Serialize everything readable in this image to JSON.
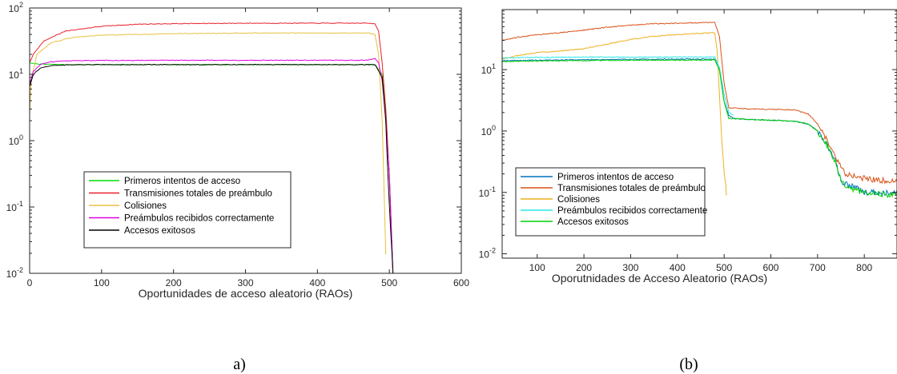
{
  "chart_data": [
    {
      "id": "a",
      "type": "line",
      "caption": "a)",
      "xlabel": "Oportunidades de acceso aleatorio (RAOs)",
      "ylabel": "",
      "xlim": [
        0,
        600
      ],
      "ylim": [
        0.01,
        100
      ],
      "yscale": "log",
      "xticks": [
        0,
        100,
        200,
        300,
        400,
        500,
        600
      ],
      "yticks": [
        {
          "value": 0.01,
          "base": "10",
          "exp": "-2"
        },
        {
          "value": 0.1,
          "base": "10",
          "exp": "-1"
        },
        {
          "value": 1,
          "base": "10",
          "exp": "0"
        },
        {
          "value": 10,
          "base": "10",
          "exp": "1"
        },
        {
          "value": 100,
          "base": "10",
          "exp": "2"
        }
      ],
      "grid": false,
      "legend_position": "bottom-left",
      "series": [
        {
          "name": "Primeros intentos de acceso",
          "color": "#00dd00",
          "x": [
            0,
            5,
            20,
            50,
            100,
            200,
            300,
            400,
            480,
            490,
            495,
            500,
            505
          ],
          "y": [
            14.8,
            14.5,
            14.2,
            14.0,
            14.0,
            14.0,
            14.0,
            14.0,
            14.0,
            10,
            3,
            0.3,
            0.01
          ]
        },
        {
          "name": "Transmisiones totales de preámbulo",
          "color": "#e8202a",
          "x": [
            0,
            5,
            20,
            50,
            100,
            150,
            200,
            300,
            400,
            470,
            480,
            485,
            490,
            495,
            500,
            505
          ],
          "y": [
            15,
            20,
            32,
            45,
            53,
            57,
            58,
            59,
            59,
            59,
            58,
            45,
            15,
            3,
            0.3,
            0.01
          ]
        },
        {
          "name": "Colisiones",
          "color": "#e8c040",
          "x": [
            0,
            2,
            10,
            30,
            60,
            100,
            200,
            300,
            400,
            470,
            480,
            485,
            490,
            495
          ],
          "y": [
            2.5,
            8,
            20,
            30,
            36,
            39,
            41,
            42,
            42,
            42,
            40,
            20,
            2,
            0.02
          ]
        },
        {
          "name": "Preámbulos recibidos correctamente",
          "color": "#e000e0",
          "x": [
            0,
            5,
            15,
            30,
            60,
            100,
            200,
            300,
            400,
            470,
            480,
            485,
            490,
            495,
            500,
            505
          ],
          "y": [
            7,
            11,
            14,
            15.5,
            16,
            16.2,
            16.3,
            16.3,
            16.3,
            16.3,
            17.5,
            15,
            8,
            2,
            0.3,
            0.01
          ]
        },
        {
          "name": "Accesos exitosos",
          "color": "#000000",
          "x": [
            0,
            5,
            15,
            30,
            60,
            100,
            200,
            300,
            400,
            480,
            490,
            495,
            500,
            505
          ],
          "y": [
            6.5,
            10,
            12.5,
            13.5,
            14,
            14,
            14,
            14,
            14,
            14,
            9,
            2,
            0.1,
            0.01
          ]
        }
      ]
    },
    {
      "id": "b",
      "type": "line",
      "caption": "(b)",
      "xlabel": "Oporutnidades de Acceso Aleatorio (RAOs)",
      "ylabel": "",
      "xlim": [
        25,
        870
      ],
      "ylim": [
        0.0085,
        95
      ],
      "yscale": "log",
      "xticks": [
        100,
        200,
        300,
        400,
        500,
        600,
        700,
        800
      ],
      "yticks": [
        {
          "value": 0.01,
          "base": "10",
          "exp": "-2"
        },
        {
          "value": 0.1,
          "base": "10",
          "exp": "-1"
        },
        {
          "value": 1,
          "base": "10",
          "exp": "0"
        },
        {
          "value": 10,
          "base": "10",
          "exp": "1"
        }
      ],
      "grid": false,
      "legend_position": "bottom-left",
      "series": [
        {
          "name": "Primeros intentos de acceso",
          "color": "#0072bd",
          "x": [
            25,
            100,
            200,
            300,
            400,
            480,
            490,
            500,
            510,
            520,
            550,
            600,
            650,
            680,
            700,
            720,
            740,
            750,
            780,
            800,
            830,
            870
          ],
          "y": [
            14,
            14.2,
            14.5,
            14.7,
            14.8,
            14.8,
            10,
            3,
            1.8,
            1.6,
            1.55,
            1.5,
            1.45,
            1.3,
            1.0,
            0.6,
            0.3,
            0.15,
            0.12,
            0.1,
            0.1,
            0.1
          ]
        },
        {
          "name": "Transmisiones totales de preámbulo",
          "color": "#d95319",
          "x": [
            25,
            60,
            100,
            150,
            200,
            250,
            300,
            350,
            400,
            450,
            480,
            490,
            500,
            510,
            550,
            600,
            650,
            680,
            700,
            720,
            740,
            760,
            800,
            830,
            870
          ],
          "y": [
            30,
            34,
            37,
            40,
            44,
            49,
            53,
            56,
            57,
            58,
            59,
            35,
            6,
            2.4,
            2.3,
            2.25,
            2.2,
            1.9,
            1.3,
            0.7,
            0.35,
            0.2,
            0.17,
            0.16,
            0.15
          ]
        },
        {
          "name": "Colisiones",
          "color": "#edb120",
          "x": [
            25,
            60,
            100,
            150,
            200,
            250,
            300,
            350,
            400,
            450,
            480,
            485,
            490,
            495,
            500,
            505
          ],
          "y": [
            15,
            17,
            19,
            20,
            22,
            26,
            31,
            35,
            37,
            39,
            40,
            20,
            4,
            0.7,
            0.2,
            0.1
          ]
        },
        {
          "name": "Preámbulos recibidos correctamente",
          "color": "#2ae8e8",
          "x": [
            25,
            100,
            200,
            300,
            400,
            480,
            490,
            500,
            510,
            520
          ],
          "y": [
            15.5,
            15.8,
            16,
            16,
            16,
            16,
            11,
            4,
            2,
            1.8
          ]
        },
        {
          "name": "Accesos exitosos",
          "color": "#00d000",
          "x": [
            25,
            100,
            200,
            300,
            400,
            480,
            490,
            500,
            510,
            550,
            600,
            650,
            680,
            700,
            720,
            740,
            750,
            780,
            800,
            830,
            870
          ],
          "y": [
            13.5,
            13.8,
            14,
            14.2,
            14.3,
            14.3,
            10,
            3,
            1.6,
            1.55,
            1.5,
            1.45,
            1.3,
            1.0,
            0.6,
            0.3,
            0.15,
            0.11,
            0.1,
            0.095,
            0.09
          ]
        }
      ]
    }
  ]
}
